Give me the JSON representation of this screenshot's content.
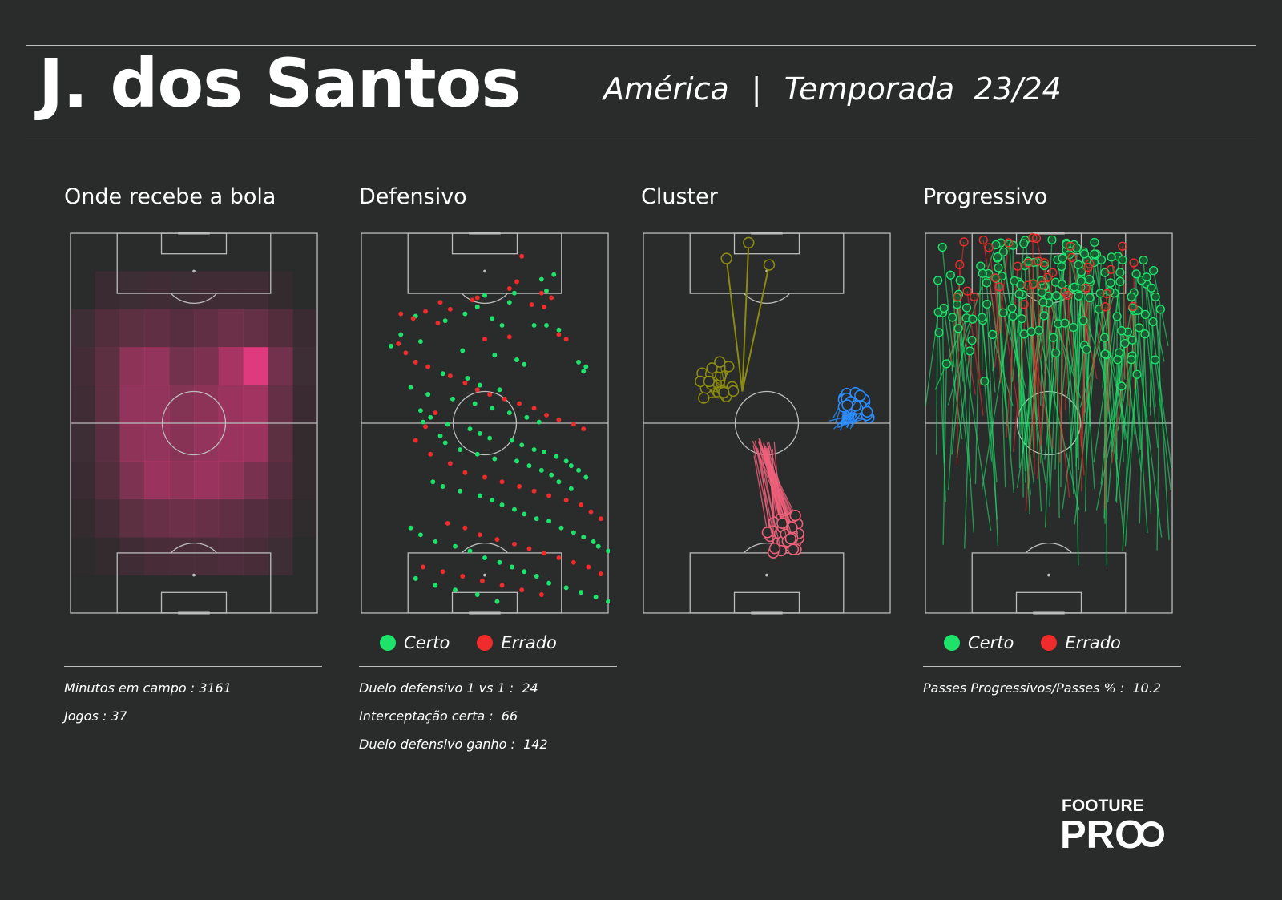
{
  "header": {
    "player": "J. dos Santos",
    "team": "América",
    "separator": "|",
    "season_label": "Temporada",
    "season": "23/24"
  },
  "legend": {
    "success": "Certo",
    "fail": "Errado"
  },
  "colors": {
    "background": "#2a2b2b",
    "lines": "#bdbdbd",
    "success": "#1ee36b",
    "fail": "#f02b2b",
    "heat": "#ff3d8c",
    "cluster_1": "#8c8c10",
    "cluster_2": "#2a8dff",
    "cluster_3": "#f0607a"
  },
  "logo": {
    "line1": "FOOTURE",
    "line2": "PRO"
  },
  "panels": {
    "heatmap": {
      "title": "Onde recebe a bola",
      "stats": [
        {
          "label": "Minutos em campo",
          "value": "3161"
        },
        {
          "label": "Jogos",
          "value": "37"
        }
      ]
    },
    "defensive": {
      "title": "Defensivo",
      "stats": [
        {
          "label": "Duelo defensivo 1 vs 1",
          "value": "24"
        },
        {
          "label": "Interceptação certa",
          "value": "66"
        },
        {
          "label": "Duelo defensivo ganho",
          "value": "142"
        }
      ]
    },
    "cluster": {
      "title": "Cluster"
    },
    "progressive": {
      "title": "Progressivo",
      "stats": [
        {
          "label": "Passes Progressivos/Passes %",
          "value": "10.2"
        }
      ]
    }
  },
  "chart_data": [
    {
      "type": "heatmap",
      "title": "Onde recebe a bola",
      "cols": 10,
      "rows": 10,
      "values": [
        [
          0.0,
          0.0,
          0.0,
          0.0,
          0.0,
          0.0,
          0.0,
          0.0,
          0.0,
          0.0
        ],
        [
          0.0,
          0.08,
          0.1,
          0.12,
          0.1,
          0.12,
          0.12,
          0.12,
          0.06,
          0.0
        ],
        [
          0.1,
          0.22,
          0.28,
          0.3,
          0.25,
          0.3,
          0.36,
          0.32,
          0.22,
          0.08
        ],
        [
          0.14,
          0.28,
          0.55,
          0.58,
          0.4,
          0.45,
          0.7,
          1.0,
          0.4,
          0.1
        ],
        [
          0.12,
          0.28,
          0.58,
          0.58,
          0.5,
          0.55,
          0.62,
          0.66,
          0.32,
          0.08
        ],
        [
          0.1,
          0.26,
          0.56,
          0.58,
          0.52,
          0.58,
          0.62,
          0.62,
          0.28,
          0.06
        ],
        [
          0.08,
          0.22,
          0.46,
          0.62,
          0.56,
          0.62,
          0.56,
          0.44,
          0.24,
          0.06
        ],
        [
          0.06,
          0.14,
          0.28,
          0.34,
          0.36,
          0.34,
          0.3,
          0.24,
          0.16,
          0.04
        ],
        [
          0.02,
          0.06,
          0.12,
          0.16,
          0.18,
          0.18,
          0.2,
          0.16,
          0.1,
          0.0
        ],
        [
          0.0,
          0.0,
          0.0,
          0.0,
          0.0,
          0.0,
          0.0,
          0.0,
          0.0,
          0.0
        ]
      ]
    },
    {
      "type": "scatter",
      "title": "Defensivo",
      "series": [
        {
          "name": "Certo",
          "points": [
            [
              78,
              18
            ],
            [
              73,
              20
            ],
            [
              75,
              25
            ],
            [
              62,
              26
            ],
            [
              50,
              27
            ],
            [
              60,
              30
            ],
            [
              47,
              32
            ],
            [
              42,
              35
            ],
            [
              53,
              37
            ],
            [
              57,
              40
            ],
            [
              70,
              40
            ],
            [
              22,
              36
            ],
            [
              34,
              38
            ],
            [
              75,
              40
            ],
            [
              80,
              42
            ],
            [
              16,
              44
            ],
            [
              12,
              49
            ],
            [
              24,
              47
            ],
            [
              41,
              51
            ],
            [
              54,
              53
            ],
            [
              63,
              55
            ],
            [
              66,
              57
            ],
            [
              88,
              56
            ],
            [
              91,
              58
            ],
            [
              90,
              60
            ],
            [
              33,
              61
            ],
            [
              43,
              63
            ],
            [
              48,
              66
            ],
            [
              56,
              68
            ],
            [
              20,
              67
            ],
            [
              27,
              70
            ],
            [
              37,
              72
            ],
            [
              46,
              74
            ],
            [
              53,
              76
            ],
            [
              60,
              78
            ],
            [
              67,
              80
            ],
            [
              72,
              82
            ],
            [
              35,
              83
            ],
            [
              44,
              85
            ],
            [
              48,
              87
            ],
            [
              52,
              89
            ],
            [
              61,
              90
            ],
            [
              65,
              92
            ],
            [
              70,
              94
            ],
            [
              74,
              95
            ],
            [
              79,
              97
            ],
            [
              83,
              99
            ],
            [
              85,
              101
            ],
            [
              88,
              103
            ],
            [
              91,
              106
            ],
            [
              25,
              82
            ],
            [
              28,
              80
            ],
            [
              24,
              77
            ],
            [
              32,
              88
            ],
            [
              34,
              91
            ],
            [
              40,
              94
            ],
            [
              47,
              96
            ],
            [
              54,
              98
            ],
            [
              63,
              99
            ],
            [
              68,
              101
            ],
            [
              73,
              103
            ],
            [
              77,
              105
            ],
            [
              80,
              108
            ],
            [
              85,
              111
            ],
            [
              29,
              108
            ],
            [
              33,
              110
            ],
            [
              40,
              112
            ],
            [
              48,
              114
            ],
            [
              53,
              116
            ],
            [
              57,
              118
            ],
            [
              62,
              120
            ],
            [
              66,
              122
            ],
            [
              71,
              124
            ],
            [
              76,
              125
            ],
            [
              81,
              128
            ],
            [
              86,
              130
            ],
            [
              90,
              132
            ],
            [
              94,
              134
            ],
            [
              96,
              136
            ],
            [
              100,
              138
            ],
            [
              20,
              128
            ],
            [
              24,
              131
            ],
            [
              30,
              134
            ],
            [
              38,
              136
            ],
            [
              44,
              138
            ],
            [
              50,
              141
            ],
            [
              56,
              143
            ],
            [
              61,
              145
            ],
            [
              66,
              147
            ],
            [
              71,
              149
            ],
            [
              76,
              152
            ],
            [
              83,
              154
            ],
            [
              89,
              156
            ],
            [
              95,
              158
            ],
            [
              100,
              160
            ],
            [
              22,
              150
            ],
            [
              30,
              153
            ],
            [
              38,
              155
            ],
            [
              47,
              157
            ],
            [
              55,
              160
            ]
          ]
        },
        {
          "name": "Errado",
          "points": [
            [
              65,
              10
            ],
            [
              63,
              21
            ],
            [
              60,
              24
            ],
            [
              47,
              28
            ],
            [
              45,
              29
            ],
            [
              32,
              30
            ],
            [
              36,
              33
            ],
            [
              16,
              35
            ],
            [
              21,
              37
            ],
            [
              26,
              34
            ],
            [
              31,
              39
            ],
            [
              73,
              26
            ],
            [
              74,
              32
            ],
            [
              69,
              31
            ],
            [
              77,
              28
            ],
            [
              80,
              44
            ],
            [
              83,
              46
            ],
            [
              60,
              45
            ],
            [
              50,
              46
            ],
            [
              15,
              48
            ],
            [
              18,
              52
            ],
            [
              22,
              56
            ],
            [
              27,
              58
            ],
            [
              36,
              62
            ],
            [
              42,
              65
            ],
            [
              47,
              68
            ],
            [
              52,
              70
            ],
            [
              58,
              72
            ],
            [
              64,
              74
            ],
            [
              70,
              76
            ],
            [
              75,
              79
            ],
            [
              80,
              81
            ],
            [
              86,
              83
            ],
            [
              90,
              85
            ],
            [
              30,
              78
            ],
            [
              26,
              84
            ],
            [
              22,
              90
            ],
            [
              28,
              96
            ],
            [
              36,
              100
            ],
            [
              42,
              104
            ],
            [
              50,
              106
            ],
            [
              57,
              108
            ],
            [
              64,
              110
            ],
            [
              70,
              112
            ],
            [
              76,
              114
            ],
            [
              83,
              116
            ],
            [
              89,
              118
            ],
            [
              93,
              121
            ],
            [
              97,
              124
            ],
            [
              35,
              126
            ],
            [
              42,
              128
            ],
            [
              48,
              131
            ],
            [
              55,
              133
            ],
            [
              62,
              135
            ],
            [
              68,
              137
            ],
            [
              74,
              139
            ],
            [
              80,
              141
            ],
            [
              86,
              143
            ],
            [
              92,
              145
            ],
            [
              97,
              148
            ],
            [
              25,
              145
            ],
            [
              33,
              147
            ],
            [
              41,
              149
            ],
            [
              49,
              151
            ],
            [
              57,
              153
            ],
            [
              65,
              155
            ],
            [
              73,
              157
            ]
          ]
        }
      ]
    },
    {
      "type": "scatter",
      "title": "Cluster",
      "series": [
        {
          "name": "",
          "centroid": [
            29,
            38
          ],
          "n": 30
        },
        {
          "name": "",
          "centroid": [
            86,
            46
          ],
          "n": 28
        },
        {
          "name": "",
          "centroid": [
            58,
            79
          ],
          "n": 35
        }
      ]
    },
    {
      "type": "line",
      "title": "Progressivo",
      "series": [
        {
          "name": "Certo",
          "n": 150
        },
        {
          "name": "Errado",
          "n": 35
        }
      ]
    }
  ]
}
